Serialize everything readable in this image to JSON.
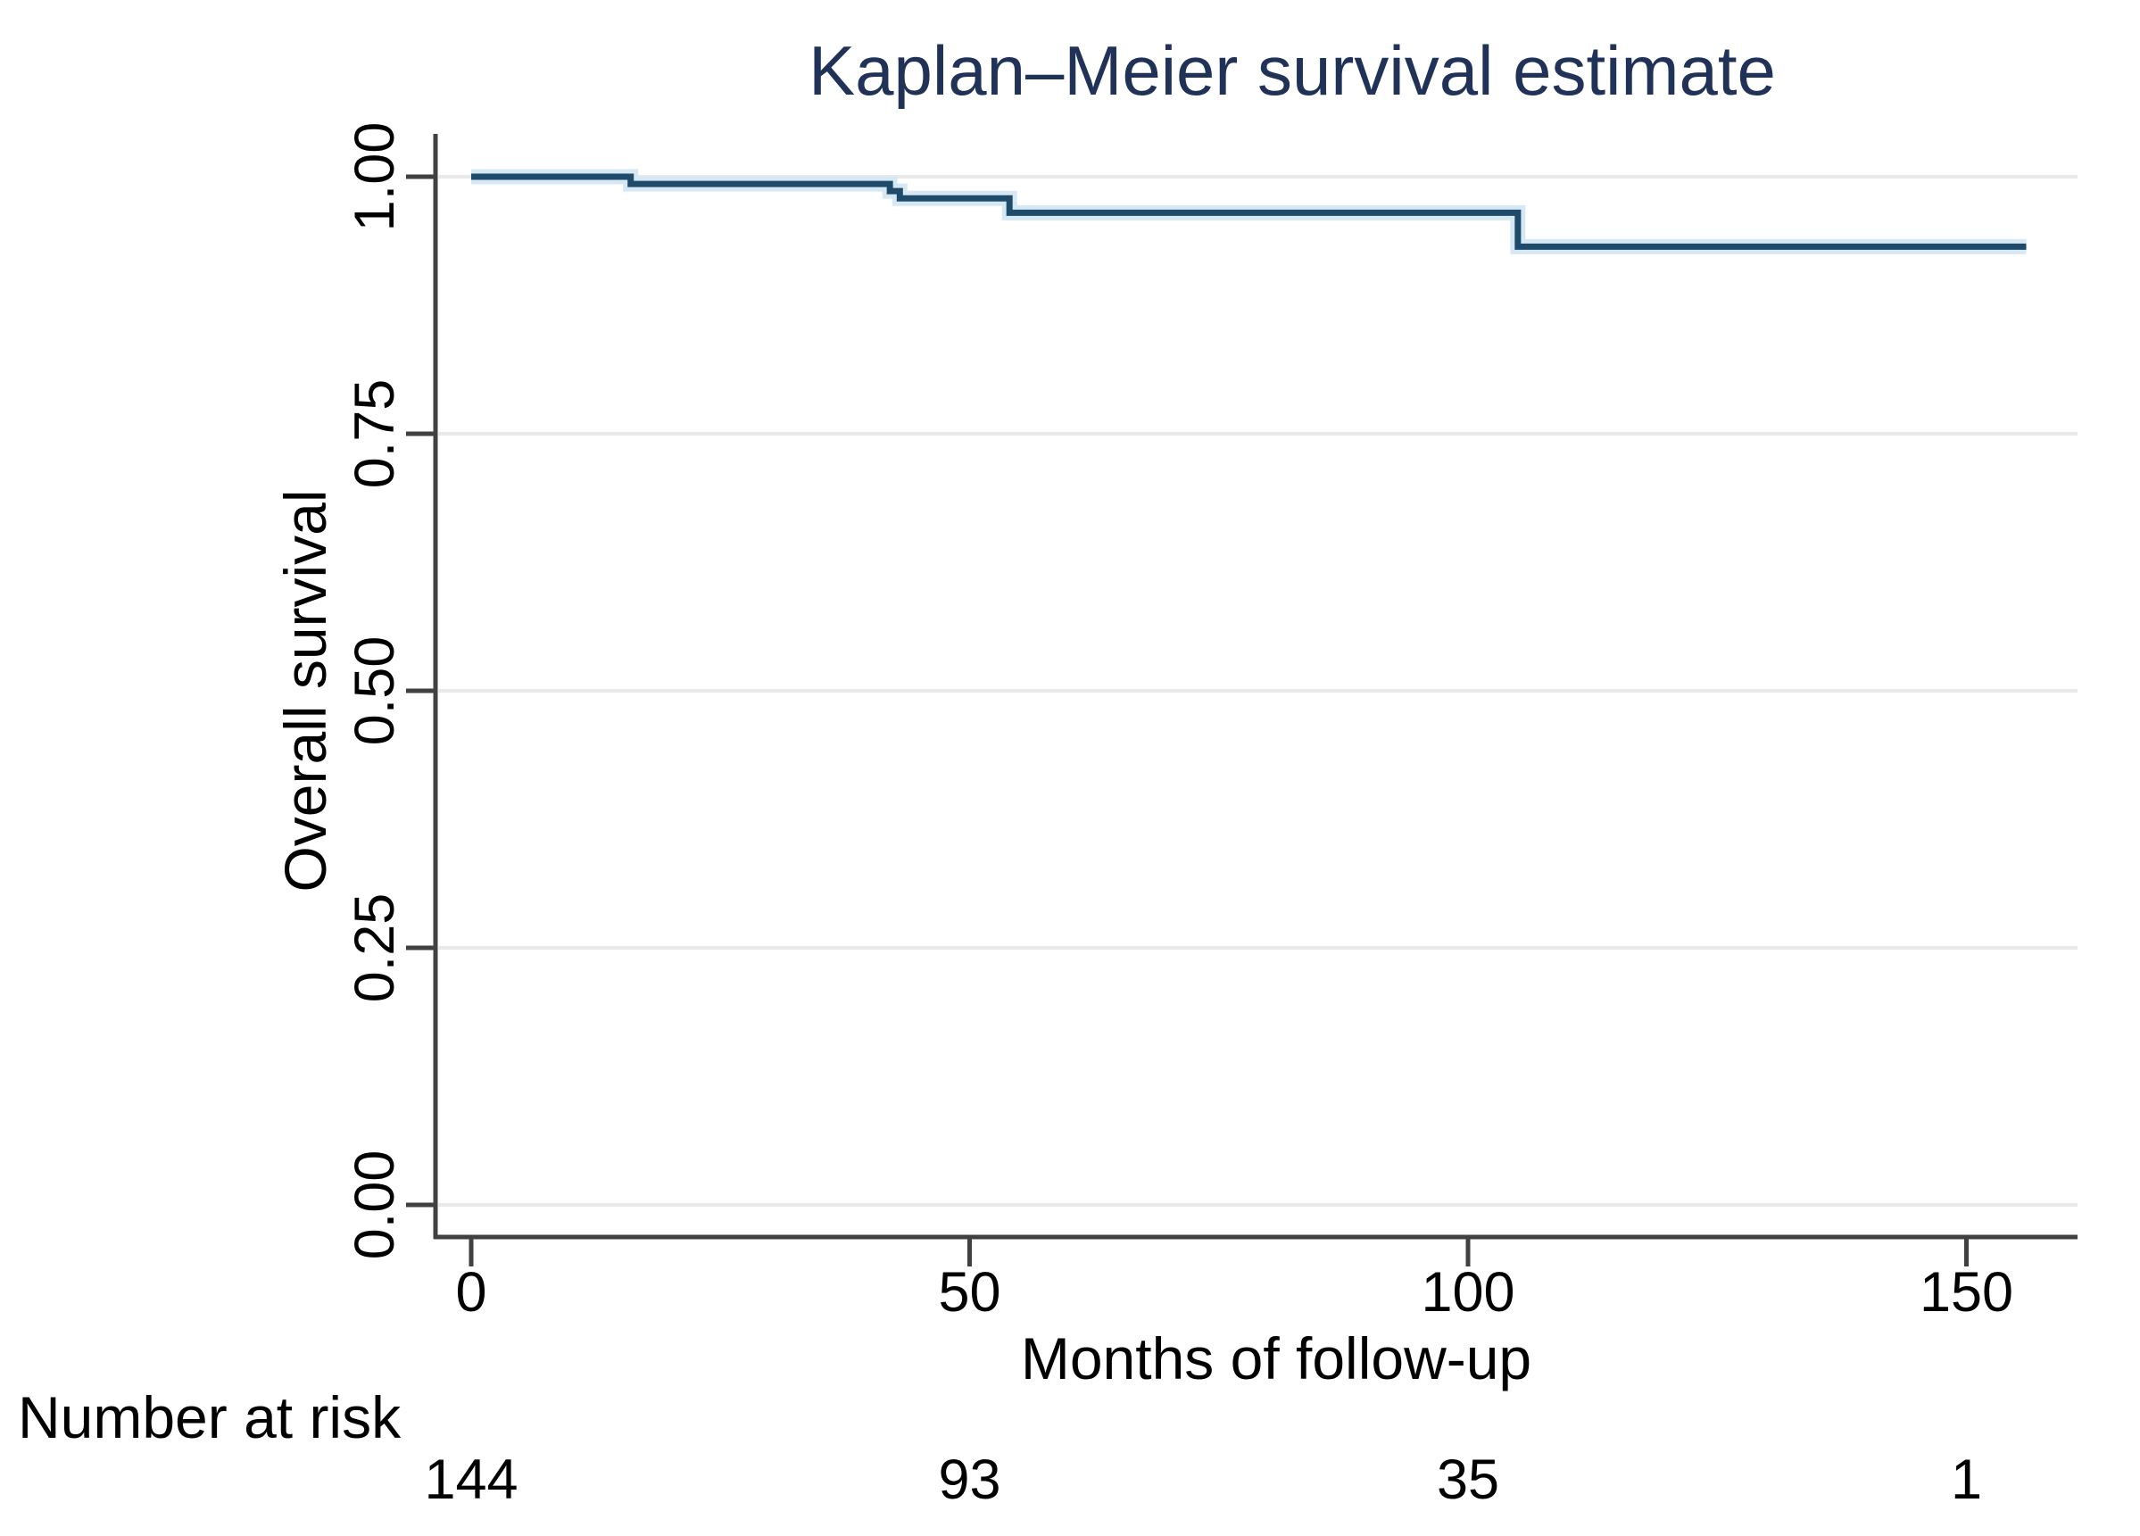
{
  "chart_data": {
    "type": "line",
    "subtype": "kaplan-meier-step",
    "title": "Kaplan–Meier survival estimate",
    "xlabel": "Months of follow-up",
    "ylabel": "Overall survival",
    "xlim": [
      0,
      161
    ],
    "ylim": [
      0.0,
      1.0
    ],
    "grid": "horizontal-light",
    "legend": "none",
    "colors": {
      "title": "#203257",
      "line": "#1e4a6b",
      "line_halo": "#d7e8f5",
      "axis": "#404040",
      "gridline": "#e9e9e9",
      "text": "#000000",
      "background": "#ffffff"
    },
    "y_ticks": [
      {
        "value": 0.0,
        "label": "0.00"
      },
      {
        "value": 0.25,
        "label": "0.25"
      },
      {
        "value": 0.5,
        "label": "0.50"
      },
      {
        "value": 0.75,
        "label": "0.75"
      },
      {
        "value": 1.0,
        "label": "1.00"
      }
    ],
    "x_ticks": [
      {
        "value": 0,
        "label": "0"
      },
      {
        "value": 50,
        "label": "50"
      },
      {
        "value": 100,
        "label": "100"
      },
      {
        "value": 150,
        "label": "150"
      }
    ],
    "series": [
      {
        "name": "Overall survival",
        "steps": [
          {
            "month": 0,
            "survival": 1.0
          },
          {
            "month": 16,
            "survival": 0.993
          },
          {
            "month": 42,
            "survival": 0.986
          },
          {
            "month": 43,
            "survival": 0.979
          },
          {
            "month": 54,
            "survival": 0.965
          },
          {
            "month": 105,
            "survival": 0.932
          }
        ],
        "end_month": 156
      }
    ],
    "risk_table": {
      "header": "Number at risk",
      "times": [
        0,
        50,
        100,
        150
      ],
      "values": [
        "144",
        "93",
        "35",
        "1"
      ]
    }
  }
}
